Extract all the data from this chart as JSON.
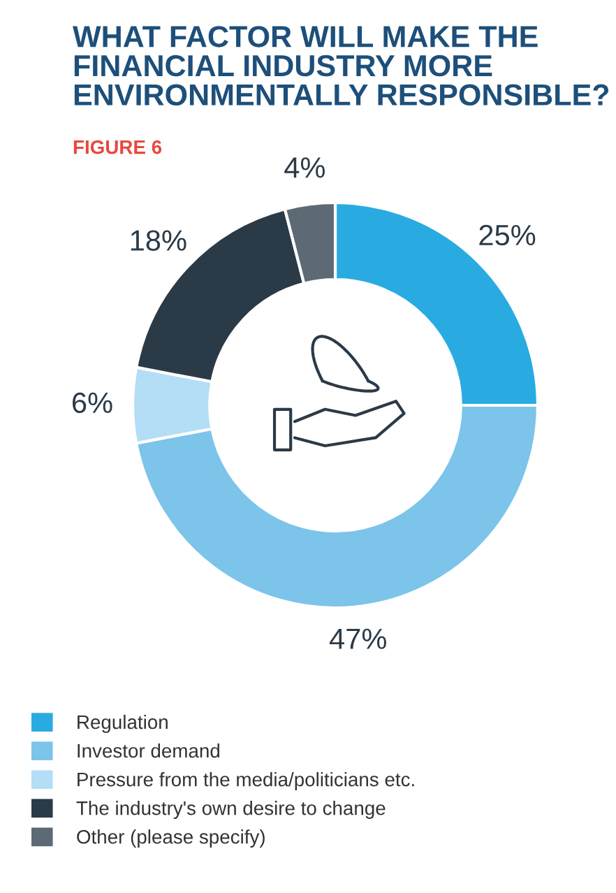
{
  "chart_data": {
    "type": "donut",
    "title": "WHAT FACTOR WILL MAKE THE FINANCIAL INDUSTRY MORE ENVIRONMENTALLY RESPONSIBLE?",
    "subtitle": "FIGURE 6",
    "categories": [
      "Regulation",
      "Investor demand",
      "Pressure from the media/politicians etc.",
      "The industry's own desire to change",
      "Other (please specify)"
    ],
    "values": [
      25,
      47,
      6,
      18,
      4
    ],
    "colors": [
      "#29abe2",
      "#7cc4ea",
      "#b3def5",
      "#2b3a47",
      "#5d6975"
    ],
    "value_labels": [
      "25%",
      "47%",
      "6%",
      "18%",
      "4%"
    ],
    "legend": "bottom"
  }
}
